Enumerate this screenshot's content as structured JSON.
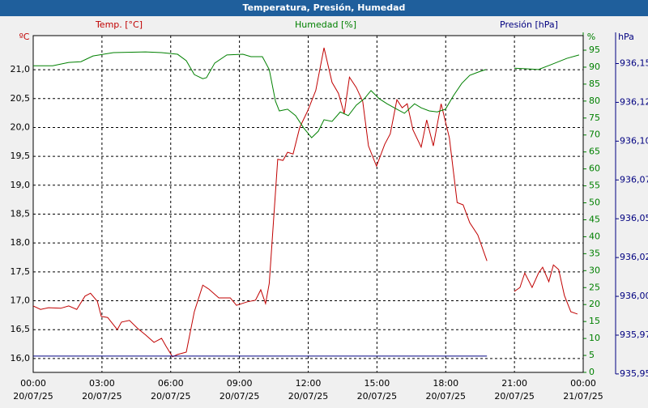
{
  "chart_data": {
    "type": "line",
    "title": "Temperatura, Presión, Humedad",
    "ylabel": "Temp. [°C]",
    "y_unit": "ºC",
    "y2label": "Humedad [%]",
    "y2_unit": "%",
    "y3label": "Presión [hPa]",
    "y3_unit": "hPa",
    "grid": true,
    "xlim": [
      0,
      24
    ],
    "xticks": [
      {
        "value": 0,
        "label": "00:00",
        "date": "20/07/25"
      },
      {
        "value": 3,
        "label": "03:00",
        "date": "20/07/25"
      },
      {
        "value": 6,
        "label": "06:00",
        "date": "20/07/25"
      },
      {
        "value": 9,
        "label": "09:00",
        "date": "20/07/25"
      },
      {
        "value": 12,
        "label": "12:00",
        "date": "20/07/25"
      },
      {
        "value": 15,
        "label": "15:00",
        "date": "20/07/25"
      },
      {
        "value": 18,
        "label": "18:00",
        "date": "20/07/25"
      },
      {
        "value": 21,
        "label": "21:00",
        "date": "20/07/25"
      },
      {
        "value": 24,
        "label": "00:00",
        "date": "21/07/25"
      }
    ],
    "ylim": [
      15.76,
      21.59
    ],
    "yticks": [
      {
        "value": 16,
        "label": "16,0"
      },
      {
        "value": 16.5,
        "label": "16,5"
      },
      {
        "value": 17,
        "label": "17,0"
      },
      {
        "value": 17.5,
        "label": "17,5"
      },
      {
        "value": 18,
        "label": "18,0"
      },
      {
        "value": 18.5,
        "label": "18,5"
      },
      {
        "value": 19,
        "label": "19,0"
      },
      {
        "value": 19.5,
        "label": "19,5"
      },
      {
        "value": 20,
        "label": "20,0"
      },
      {
        "value": 20.5,
        "label": "20,5"
      },
      {
        "value": 21,
        "label": "21,0"
      }
    ],
    "y2lim": [
      0,
      99.3
    ],
    "y2ticks": [
      0,
      5,
      10,
      15,
      20,
      25,
      30,
      35,
      40,
      45,
      50,
      55,
      60,
      65,
      70,
      75,
      80,
      85,
      90,
      95
    ],
    "y3lim": [
      935.951,
      936.168
    ],
    "y3ticks": [
      {
        "value": 935.95,
        "label": "935,95"
      },
      {
        "value": 935.975,
        "label": "935,97"
      },
      {
        "value": 936.0,
        "label": "936,00"
      },
      {
        "value": 936.025,
        "label": "936,02"
      },
      {
        "value": 936.05,
        "label": "936,05"
      },
      {
        "value": 936.075,
        "label": "936,07"
      },
      {
        "value": 936.1,
        "label": "936,10"
      },
      {
        "value": 936.125,
        "label": "936,12"
      },
      {
        "value": 936.15,
        "label": "936,15"
      }
    ],
    "series": [
      {
        "name": "Temp.",
        "color": "#c00000",
        "axis": "y",
        "x": [
          0,
          0.32,
          0.67,
          1.2,
          1.55,
          1.9,
          2.26,
          2.5,
          2.8,
          2.97,
          3.25,
          3.67,
          3.85,
          4.2,
          4.56,
          4.9,
          5.27,
          5.6,
          5.8,
          6.08,
          6.3,
          6.68,
          7.03,
          7.4,
          7.67,
          8.1,
          8.6,
          8.87,
          9.33,
          9.7,
          9.93,
          10.14,
          10.3,
          10.67,
          10.9,
          11.1,
          11.34,
          11.63,
          11.98,
          12.33,
          12.69,
          13.04,
          13.32,
          13.57,
          13.8,
          14.1,
          14.38,
          14.63,
          14.98,
          15.34,
          15.58,
          15.87,
          16.1,
          16.32,
          16.57,
          16.93,
          17.17,
          17.46,
          17.8,
          18.16,
          18.5,
          18.76,
          19.05,
          19.4,
          19.8,
          20.5,
          20.99,
          21.24,
          21.45,
          21.77,
          22.05,
          22.23,
          22.5,
          22.7,
          22.93,
          23.18,
          23.46,
          23.75
        ],
        "values": [
          16.91,
          16.85,
          16.88,
          16.87,
          16.91,
          16.85,
          17.08,
          17.13,
          16.99,
          16.73,
          16.71,
          16.5,
          16.63,
          16.66,
          16.52,
          16.41,
          16.28,
          16.35,
          16.21,
          16.03,
          16.07,
          16.11,
          16.81,
          17.27,
          17.2,
          17.05,
          17.05,
          16.92,
          16.98,
          17.01,
          17.19,
          16.95,
          17.3,
          19.45,
          19.43,
          19.57,
          19.54,
          20.0,
          20.29,
          20.64,
          21.38,
          20.78,
          20.59,
          20.24,
          20.87,
          20.69,
          20.45,
          19.68,
          19.33,
          19.71,
          19.89,
          20.48,
          20.34,
          20.41,
          19.96,
          19.66,
          20.13,
          19.68,
          20.41,
          19.82,
          18.7,
          18.66,
          18.35,
          18.14,
          17.69,
          null,
          17.16,
          17.23,
          17.48,
          17.23,
          17.48,
          17.58,
          17.33,
          17.62,
          17.54,
          17.09,
          16.81,
          16.77
        ]
      },
      {
        "name": "Humedad",
        "color": "#008000",
        "axis": "y2",
        "x": [
          0,
          0.85,
          1.55,
          2.08,
          2.61,
          3.5,
          4.9,
          5.6,
          6.3,
          6.68,
          7.03,
          7.4,
          7.56,
          7.92,
          8.45,
          9.15,
          9.5,
          10.0,
          10.3,
          10.57,
          10.74,
          11.1,
          11.45,
          11.8,
          12.15,
          12.44,
          12.69,
          13.04,
          13.4,
          13.75,
          14.1,
          14.45,
          14.74,
          15.1,
          15.44,
          15.87,
          16.2,
          16.64,
          16.93,
          17.28,
          17.63,
          17.99,
          18.34,
          18.7,
          19.05,
          19.4,
          19.75,
          20.4,
          20.99,
          21.52,
          22.05,
          22.58,
          23.29,
          23.82
        ],
        "values": [
          90.4,
          90.4,
          91.4,
          91.6,
          93.3,
          94.3,
          94.5,
          94.3,
          93.8,
          91.9,
          87.8,
          86.6,
          86.9,
          91.2,
          93.6,
          93.8,
          93.1,
          93.1,
          89.3,
          80.0,
          77.1,
          77.6,
          75.7,
          72.1,
          69.2,
          71.1,
          74.5,
          74.0,
          76.8,
          75.7,
          78.8,
          80.7,
          83.1,
          80.7,
          79.2,
          77.6,
          76.4,
          79.2,
          78.0,
          77.1,
          76.8,
          77.6,
          81.6,
          85.2,
          87.6,
          88.5,
          89.3,
          null,
          89.7,
          89.5,
          89.3,
          90.7,
          92.6,
          93.6
        ]
      },
      {
        "name": "Presión",
        "color": "#000080",
        "axis": "y3",
        "x": [
          0,
          19.8
        ],
        "values": [
          935.9615,
          935.9615
        ]
      }
    ]
  }
}
